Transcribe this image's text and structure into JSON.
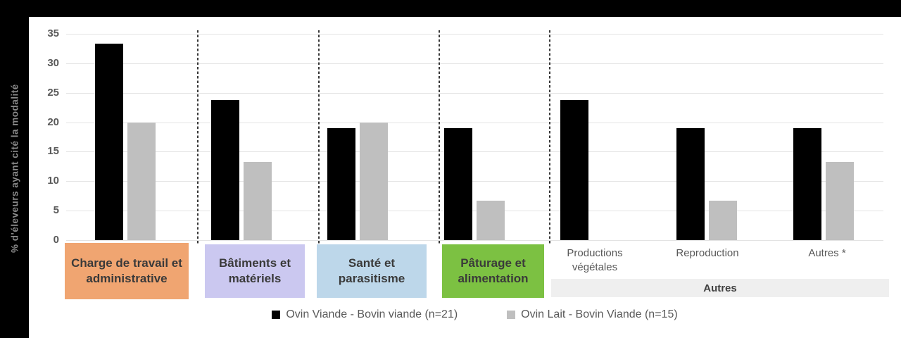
{
  "chart_data": {
    "type": "bar",
    "title": "",
    "y_axis_title": "% d'éleveurs ayant cité la modalité",
    "xlabel": "",
    "ylabel": "% d'éleveurs ayant cité la modalité",
    "ylim": [
      0,
      35
    ],
    "yticks": [
      0,
      5,
      10,
      15,
      20,
      25,
      30,
      35
    ],
    "grid": true,
    "legend_position": "bottom",
    "categories": [
      {
        "label": "Charge de travail et administrative",
        "box_color": "#F0A571"
      },
      {
        "label": "Bâtiments et matériels",
        "box_color": "#CBC8F0"
      },
      {
        "label": "Santé et parasitisme",
        "box_color": "#BDD7EA"
      },
      {
        "label": "Pâturage et alimentation",
        "box_color": "#7CC142"
      },
      {
        "label": "Productions végétales",
        "box_color": null,
        "group": "Autres"
      },
      {
        "label": "Reproduction",
        "box_color": null,
        "group": "Autres"
      },
      {
        "label": "Autres *",
        "box_color": null,
        "group": "Autres"
      }
    ],
    "series": [
      {
        "name": "Ovin Viande - Bovin viande (n=21)",
        "color": "#000000",
        "values": [
          33.3,
          23.8,
          19.0,
          19.0,
          23.8,
          19.0,
          19.0
        ]
      },
      {
        "name": "Ovin Lait - Bovin Viande (n=15)",
        "color": "#BFBFBF",
        "values": [
          20.0,
          13.3,
          20.0,
          6.7,
          0,
          6.7,
          13.3
        ]
      }
    ],
    "group_band": {
      "label": "Autres",
      "bg": "#EFEFEF"
    },
    "separators": "dashed vertical lines between boxed categories"
  },
  "colors": {
    "frame": "#000000",
    "gridline": "#E3E3E3",
    "tick_text": "#595959",
    "label_text": "#595959",
    "axis_title_text": "#8A8A8A"
  }
}
